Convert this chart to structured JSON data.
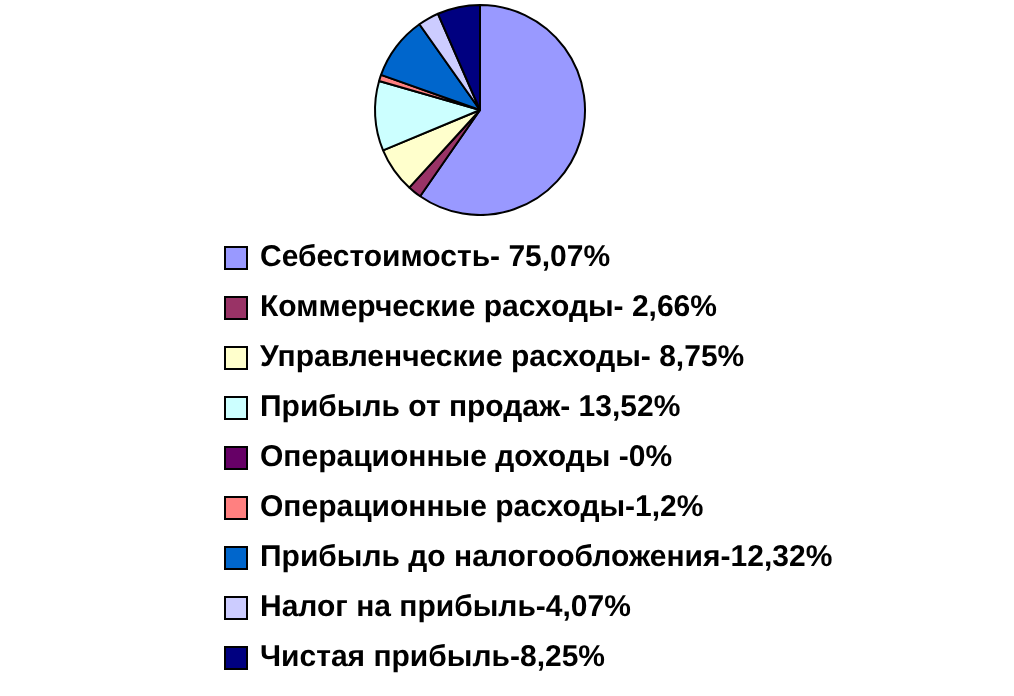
{
  "chart_data": {
    "type": "pie",
    "categories": [
      "Себестоимость- ",
      "Коммерческие расходы- ",
      "Управленческие расходы- ",
      "Прибыль от продаж- ",
      "Операционные доходы -",
      "Операционные расходы-",
      "Прибыль до налогообложения-",
      "Налог на прибыль-",
      "Чистая прибыль-"
    ],
    "values": [
      75.07,
      2.66,
      8.75,
      13.52,
      0,
      1.2,
      12.32,
      4.07,
      8.25
    ],
    "value_labels": [
      "75,07%",
      "2,66%",
      "8,75%",
      "13,52%",
      "0%",
      "1,2%",
      "12,32%",
      "4,07%",
      "8,25%"
    ],
    "colors": [
      "#9999ff",
      "#993366",
      "#ffffcc",
      "#ccffff",
      "#660066",
      "#ff8080",
      "#0066cc",
      "#ccccff",
      "#000080"
    ],
    "legend": "bottom"
  }
}
